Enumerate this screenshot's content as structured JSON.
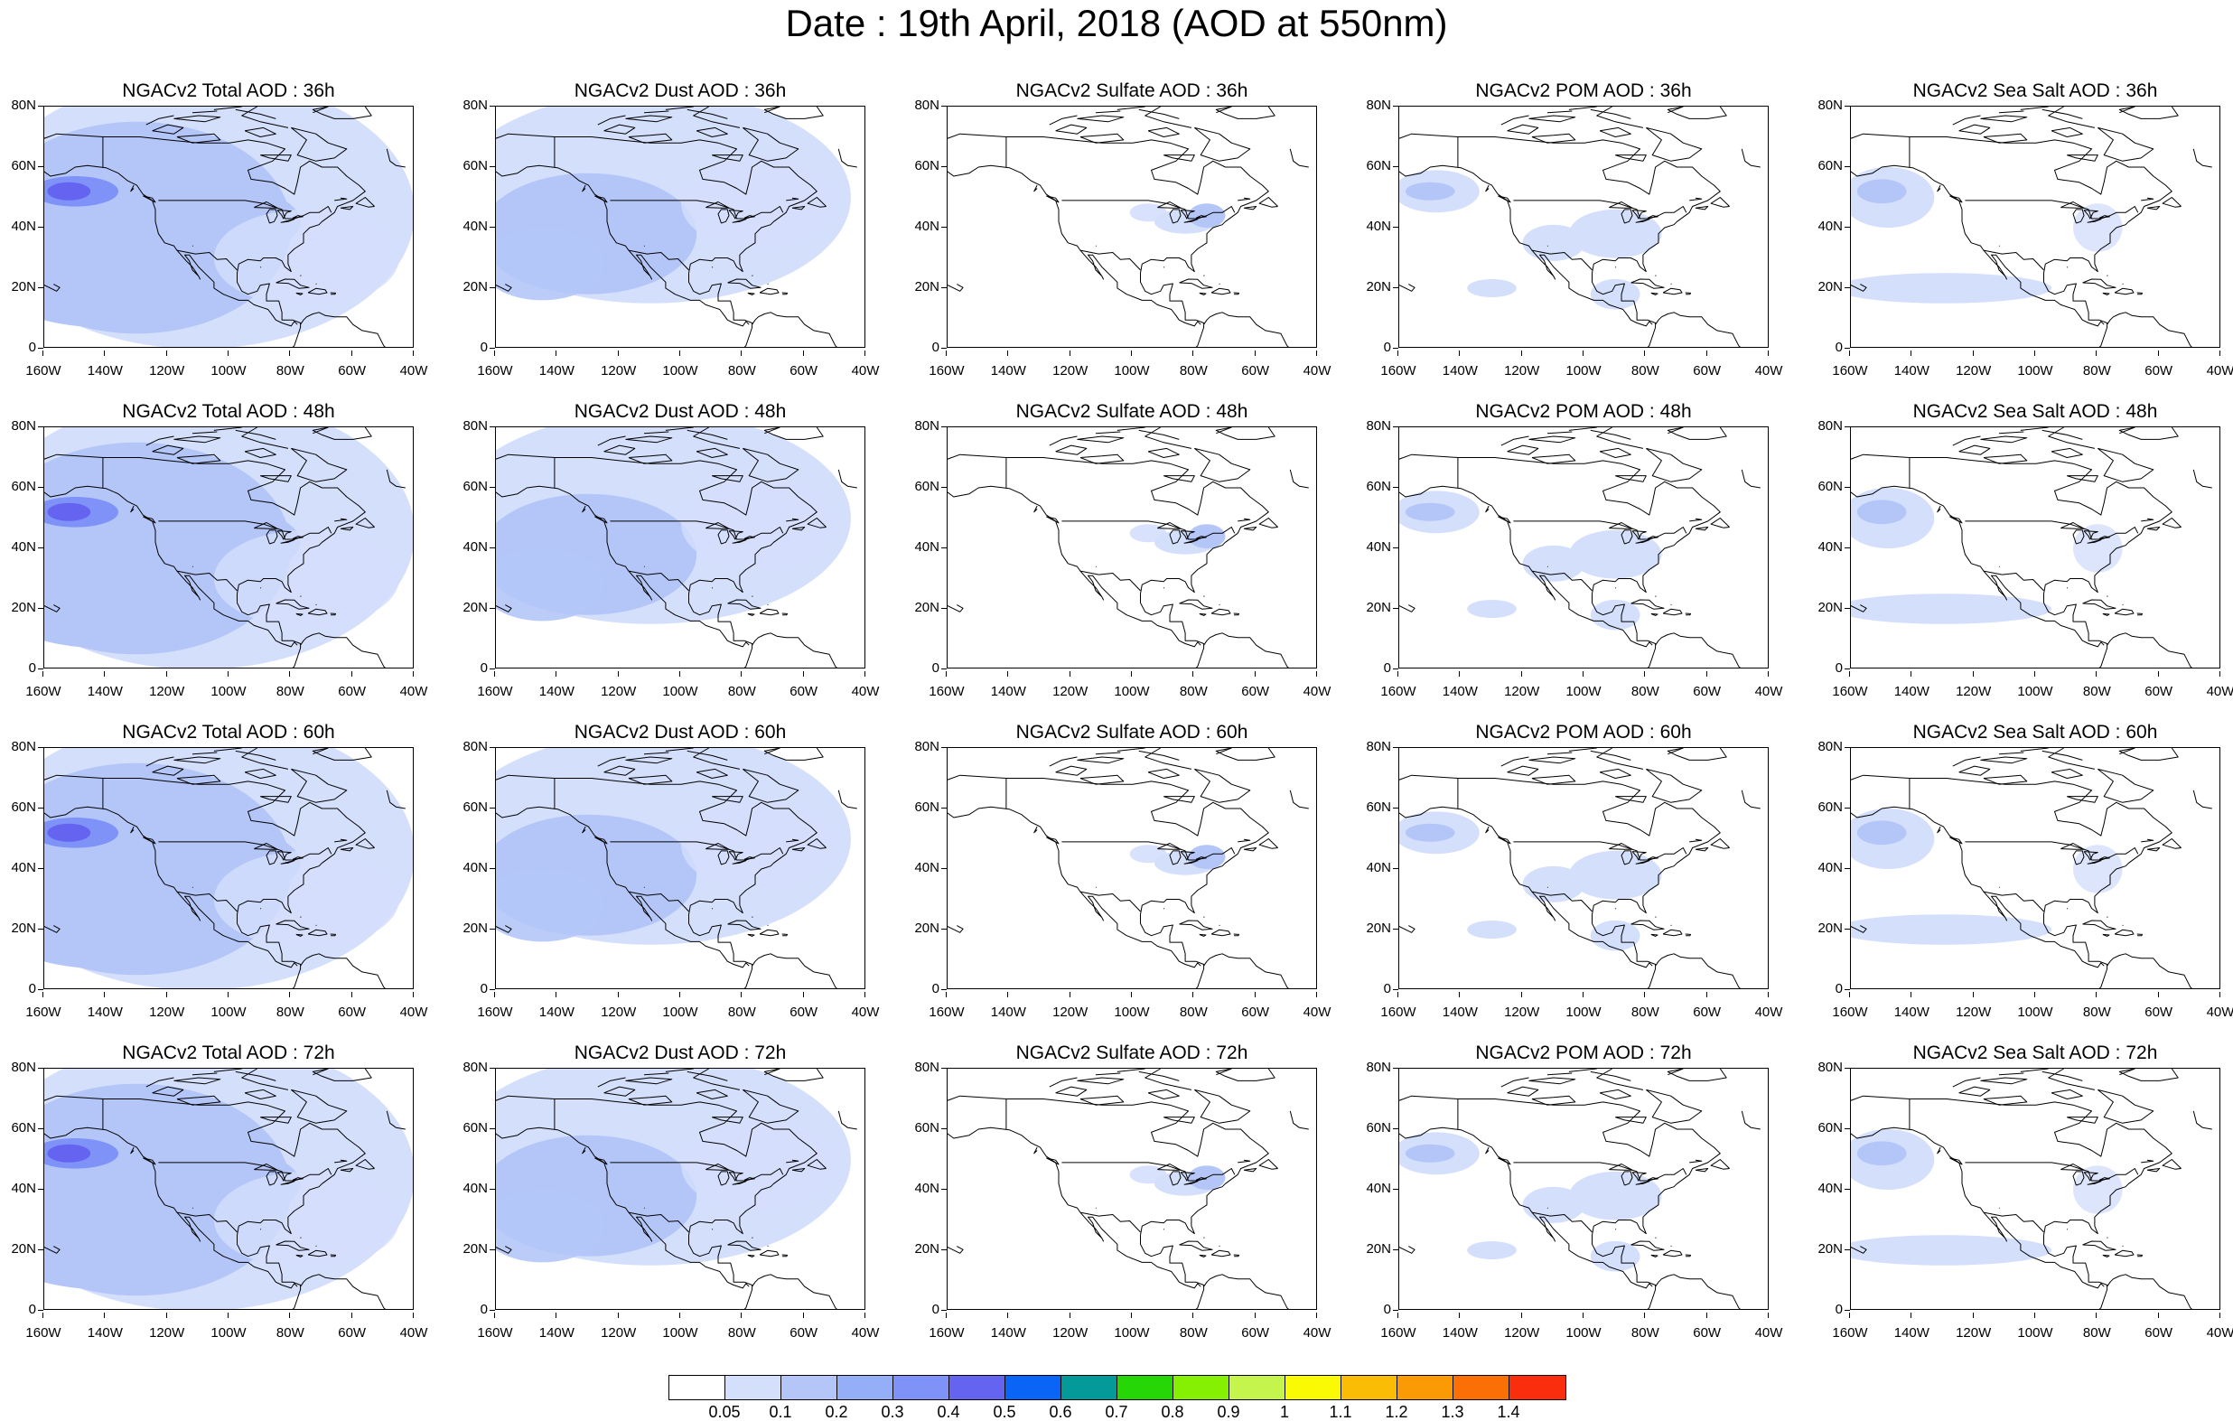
{
  "title": "Date : 19th April, 2018 (AOD at 550nm)",
  "latitude_labels": [
    "80N",
    "60N",
    "40N",
    "20N",
    "0"
  ],
  "longitude_labels": [
    "160W",
    "140W",
    "120W",
    "100W",
    "80W",
    "60W",
    "40W"
  ],
  "panels": [
    [
      "NGACv2 Total AOD : 36h",
      "NGACv2 Dust AOD : 36h",
      "NGACv2 Sulfate AOD : 36h",
      "NGACv2 POM AOD : 36h",
      "NGACv2 Sea Salt AOD : 36h"
    ],
    [
      "NGACv2 Total AOD : 48h",
      "NGACv2 Dust AOD : 48h",
      "NGACv2 Sulfate AOD : 48h",
      "NGACv2 POM AOD : 48h",
      "NGACv2 Sea Salt AOD : 48h"
    ],
    [
      "NGACv2 Total AOD : 60h",
      "NGACv2 Dust AOD : 60h",
      "NGACv2 Sulfate AOD : 60h",
      "NGACv2 POM AOD : 60h",
      "NGACv2 Sea Salt AOD : 60h"
    ],
    [
      "NGACv2 Total AOD : 72h",
      "NGACv2 Dust AOD : 72h",
      "NGACv2 Sulfate AOD : 72h",
      "NGACv2 POM AOD : 72h",
      "NGACv2 Sea Salt  AOD : 72h"
    ]
  ],
  "colorbar": {
    "labels": [
      "0.05",
      "0.1",
      "0.2",
      "0.3",
      "0.4",
      "0.5",
      "0.6",
      "0.7",
      "0.8",
      "0.9",
      "1",
      "1.1",
      "1.2",
      "1.3",
      "1.4"
    ],
    "colors": [
      "#ffffff",
      "#d4dffc",
      "#b4c6f8",
      "#94aef7",
      "#7e92f7",
      "#6564f0",
      "#0a64f5",
      "#049a9a",
      "#26d606",
      "#86f002",
      "#c5f54d",
      "#fafa04",
      "#fabc04",
      "#fa9a04",
      "#fa7006",
      "#fa2d0c"
    ]
  }
}
